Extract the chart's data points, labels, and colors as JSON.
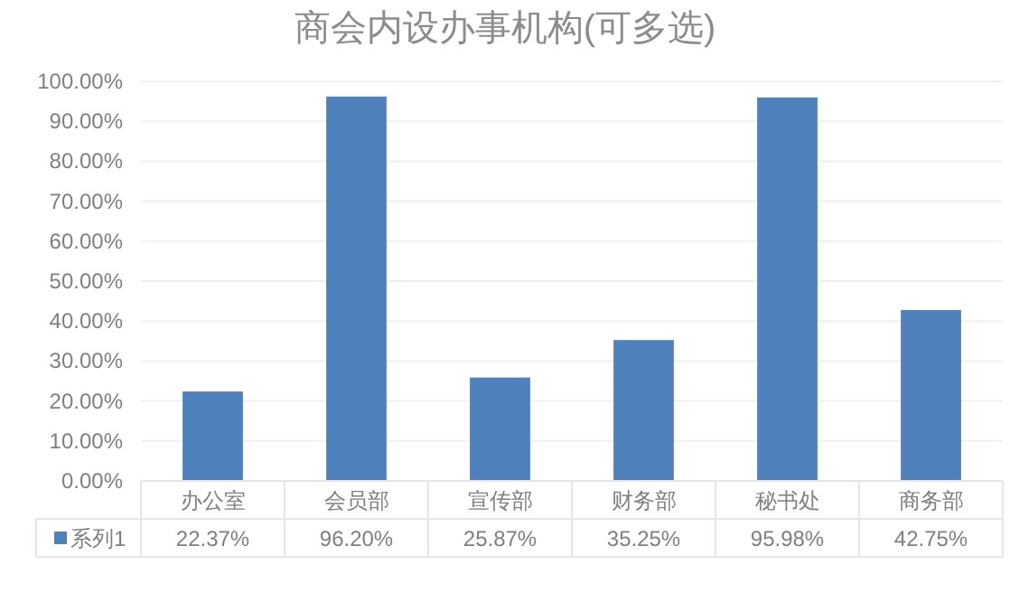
{
  "chart_data": {
    "type": "bar",
    "title": "商会内设办事机构(可多选)",
    "categories": [
      "办公室",
      "会员部",
      "宣传部",
      "财务部",
      "秘书处",
      "商务部"
    ],
    "series": [
      {
        "name": "系列1",
        "color": "#4f81bd",
        "values": [
          22.37,
          96.2,
          25.87,
          35.25,
          95.98,
          42.75
        ],
        "value_labels": [
          "22.37%",
          "96.20%",
          "25.87%",
          "35.25%",
          "95.98%",
          "42.75%"
        ]
      }
    ],
    "ylim": [
      0,
      100
    ],
    "yticks": [
      {
        "value": 0,
        "label": "0.00%"
      },
      {
        "value": 10,
        "label": "10.00%"
      },
      {
        "value": 20,
        "label": "20.00%"
      },
      {
        "value": 30,
        "label": "30.00%"
      },
      {
        "value": 40,
        "label": "40.00%"
      },
      {
        "value": 50,
        "label": "50.00%"
      },
      {
        "value": 60,
        "label": "60.00%"
      },
      {
        "value": 70,
        "label": "70.00%"
      },
      {
        "value": 80,
        "label": "80.00%"
      },
      {
        "value": 90,
        "label": "90.00%"
      },
      {
        "value": 100,
        "label": "100.00%"
      }
    ],
    "grid": "y",
    "legend": "bottom"
  }
}
